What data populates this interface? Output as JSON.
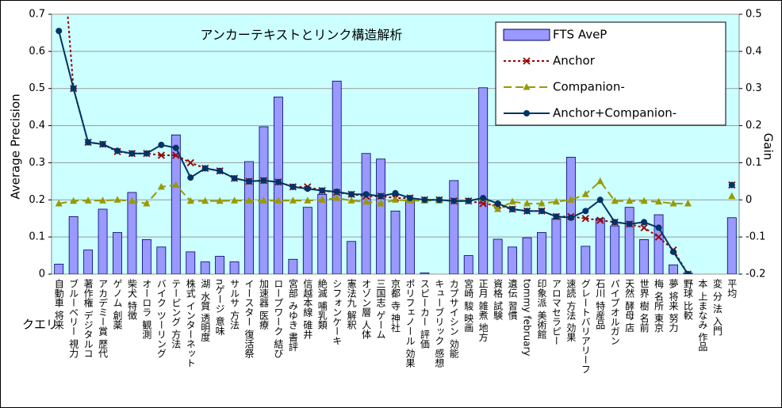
{
  "chart_data": {
    "type": "bar",
    "title": "アンカーテキストとリンク構造解析",
    "x_label": "クエリ",
    "y_label": "Average Precision",
    "y2_label": "Gain",
    "categories": [
      "自動車 将来",
      "ブルーベリー 視力",
      "著作権 デジタルコ",
      "アカデミー賞 歴代",
      "ゲノム 創薬",
      "柴犬 特徴",
      "オーロラ 観測",
      "バイク ツーリング",
      "テーピング 方法",
      "株式 インターネット",
      "湖 水質 透明度",
      "nゲージ 意味",
      "サルサ 方法",
      "イースター 復活祭",
      "加速器 医療",
      "ロープワーク 結び",
      "宮部 みゆき 書評",
      "信越本線 碓井",
      "絶滅 哺乳類",
      "シフォンケーキ",
      "憲法九 解釈",
      "オゾン層 人体",
      "三国志 ゲーム",
      "京都 寺 神社",
      "ポリフェノール 効果",
      "スピーカー 評価",
      "キューブリック 感想",
      "カプサイシン 効能",
      "宮崎 駿 映画",
      "正月 雑煮 地方",
      "資格 試験",
      "遺伝 習慣",
      "tommy february",
      "印象派 美術館",
      "アロマセラピー",
      "速読 方法 効果",
      "グレートバリアリーフ",
      "石川 特産品",
      "パイプオルガン",
      "天然 酵母 店",
      "世界 樹 名前",
      "梅 名所 東京",
      "夢 将来 努力",
      "野球 比較",
      "本 上まなみ 作品",
      "変 分 法 入門",
      "平均"
    ],
    "series": [
      {
        "name": "FTS AveP",
        "type": "bar",
        "axis": "y",
        "color": "#9999ff",
        "values": [
          0.027,
          0.155,
          0.065,
          0.175,
          0.112,
          0.22,
          0.093,
          0.073,
          0.375,
          0.06,
          0.033,
          0.048,
          0.033,
          0.303,
          0.397,
          0.477,
          0.04,
          0.18,
          0.215,
          0.52,
          0.088,
          0.325,
          0.31,
          0.17,
          0.2,
          0.003,
          0,
          0.252,
          0.05,
          0.502,
          0.094,
          0.073,
          0.098,
          0.112,
          0.15,
          0.315,
          0.075,
          0.15,
          0.13,
          0.18,
          0.093,
          0.16,
          0.025,
          0.003,
          0,
          0,
          0.152
        ]
      },
      {
        "name": "Anchor",
        "type": "line",
        "axis": "y2",
        "color": "#990000",
        "values": [
          0.8,
          0.3,
          0.155,
          0.15,
          0.13,
          0.125,
          0.125,
          0.12,
          0.12,
          0.1,
          0.085,
          0.078,
          0.058,
          0.05,
          0.052,
          0.048,
          0.035,
          0.035,
          0.025,
          0.02,
          0.015,
          0.01,
          0.01,
          0.005,
          0.005,
          0,
          0,
          -0.003,
          -0.003,
          -0.01,
          -0.015,
          -0.025,
          -0.03,
          -0.03,
          -0.045,
          -0.045,
          -0.05,
          -0.055,
          -0.06,
          -0.065,
          -0.075,
          -0.1,
          -0.135,
          -0.2,
          null,
          null,
          0.04
        ]
      },
      {
        "name": "Companion-",
        "type": "line",
        "axis": "y2",
        "color": "#999900",
        "values": [
          -0.01,
          -0.003,
          -0.002,
          -0.002,
          0,
          -0.003,
          -0.01,
          0.035,
          0.04,
          -0.003,
          -0.003,
          -0.003,
          -0.002,
          -0.002,
          -0.002,
          -0.002,
          -0.002,
          -0.002,
          0,
          0.005,
          -0.002,
          -0.005,
          -0.01,
          0,
          -0.002,
          -0.002,
          -0.002,
          -0.002,
          -0.002,
          0.005,
          -0.025,
          -0.005,
          -0.01,
          -0.01,
          -0.005,
          0,
          0.015,
          0.05,
          -0.003,
          -0.003,
          -0.003,
          -0.005,
          -0.01,
          -0.01,
          null,
          null,
          0.01
        ]
      },
      {
        "name": "Anchor+Companion-",
        "type": "line",
        "axis": "y2",
        "color": "#003366",
        "values": [
          0.455,
          0.3,
          0.155,
          0.15,
          0.132,
          0.125,
          0.125,
          0.148,
          0.14,
          0.06,
          0.085,
          0.078,
          0.058,
          0.05,
          0.052,
          0.048,
          0.035,
          0.03,
          0.025,
          0.022,
          0.015,
          0.015,
          0.01,
          0.018,
          0.005,
          0,
          0,
          -0.003,
          -0.003,
          0.005,
          -0.01,
          -0.025,
          -0.03,
          -0.03,
          -0.045,
          -0.048,
          -0.03,
          0,
          -0.06,
          -0.065,
          -0.06,
          -0.075,
          -0.14,
          -0.2,
          null,
          null,
          0.04
        ]
      }
    ],
    "ylim": [
      0,
      0.7
    ],
    "yticks": [
      0,
      0.1,
      0.2,
      0.3,
      0.4,
      0.5,
      0.6,
      0.7
    ],
    "y2lim": [
      -0.2,
      0.5
    ],
    "y2ticks": [
      -0.2,
      -0.1,
      0,
      0.1,
      0.2,
      0.3,
      0.4,
      0.5
    ],
    "grid": true,
    "legend": "upper right"
  }
}
